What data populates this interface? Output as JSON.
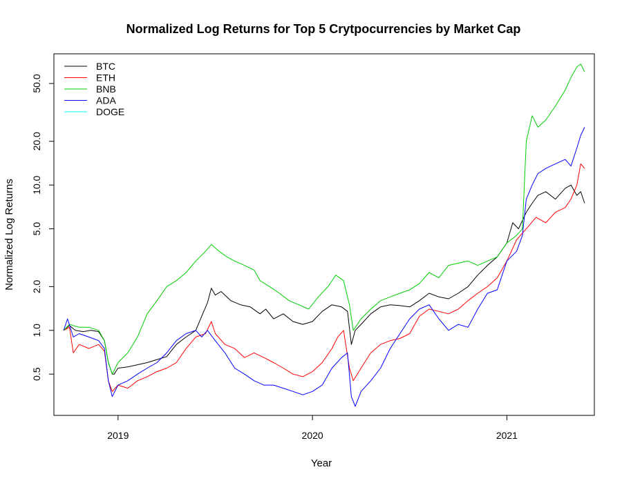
{
  "chart_data": {
    "type": "line",
    "title": "Normalized Log Returns for Top 5 Crytpocurrencies by Market Cap",
    "xlabel": "Year",
    "ylabel": "Normalized Log Returns",
    "y_scale": "log",
    "xlim": [
      2018.67,
      2021.45
    ],
    "ylim": [
      0.26,
      80
    ],
    "x_ticks": [
      {
        "value": 2019,
        "label": "2019"
      },
      {
        "value": 2020,
        "label": "2020"
      },
      {
        "value": 2021,
        "label": "2021"
      }
    ],
    "y_ticks": [
      {
        "value": 0.5,
        "label": "0.5"
      },
      {
        "value": 1.0,
        "label": "1.0"
      },
      {
        "value": 2.0,
        "label": "2.0"
      },
      {
        "value": 5.0,
        "label": "5.0"
      },
      {
        "value": 10.0,
        "label": "10.0"
      },
      {
        "value": 20.0,
        "label": "20.0"
      },
      {
        "value": 50.0,
        "label": "50.0"
      }
    ],
    "grid": false,
    "legend_position": "top-left",
    "series": [
      {
        "name": "BTC",
        "color": "#000000",
        "points": [
          [
            2018.72,
            1.0
          ],
          [
            2018.75,
            1.08
          ],
          [
            2018.78,
            1.0
          ],
          [
            2018.82,
            0.98
          ],
          [
            2018.86,
            1.0
          ],
          [
            2018.9,
            0.98
          ],
          [
            2018.93,
            0.85
          ],
          [
            2018.95,
            0.6
          ],
          [
            2018.97,
            0.5
          ],
          [
            2018.98,
            0.5
          ],
          [
            2019.0,
            0.55
          ],
          [
            2019.05,
            0.56
          ],
          [
            2019.1,
            0.58
          ],
          [
            2019.15,
            0.6
          ],
          [
            2019.2,
            0.63
          ],
          [
            2019.25,
            0.66
          ],
          [
            2019.3,
            0.8
          ],
          [
            2019.35,
            0.9
          ],
          [
            2019.4,
            1.0
          ],
          [
            2019.43,
            1.25
          ],
          [
            2019.46,
            1.55
          ],
          [
            2019.48,
            1.95
          ],
          [
            2019.5,
            1.75
          ],
          [
            2019.53,
            1.85
          ],
          [
            2019.58,
            1.6
          ],
          [
            2019.63,
            1.5
          ],
          [
            2019.68,
            1.45
          ],
          [
            2019.73,
            1.3
          ],
          [
            2019.76,
            1.4
          ],
          [
            2019.8,
            1.2
          ],
          [
            2019.85,
            1.3
          ],
          [
            2019.9,
            1.15
          ],
          [
            2019.95,
            1.1
          ],
          [
            2020.0,
            1.15
          ],
          [
            2020.05,
            1.35
          ],
          [
            2020.1,
            1.5
          ],
          [
            2020.15,
            1.45
          ],
          [
            2020.18,
            1.35
          ],
          [
            2020.2,
            0.8
          ],
          [
            2020.22,
            1.0
          ],
          [
            2020.25,
            1.1
          ],
          [
            2020.3,
            1.3
          ],
          [
            2020.35,
            1.45
          ],
          [
            2020.4,
            1.5
          ],
          [
            2020.45,
            1.48
          ],
          [
            2020.5,
            1.45
          ],
          [
            2020.55,
            1.6
          ],
          [
            2020.6,
            1.8
          ],
          [
            2020.65,
            1.7
          ],
          [
            2020.7,
            1.65
          ],
          [
            2020.75,
            1.8
          ],
          [
            2020.8,
            2.0
          ],
          [
            2020.85,
            2.4
          ],
          [
            2020.9,
            2.8
          ],
          [
            2020.95,
            3.2
          ],
          [
            2021.0,
            4.0
          ],
          [
            2021.03,
            5.5
          ],
          [
            2021.06,
            5.0
          ],
          [
            2021.1,
            6.5
          ],
          [
            2021.13,
            7.5
          ],
          [
            2021.16,
            8.5
          ],
          [
            2021.2,
            9.0
          ],
          [
            2021.25,
            8.0
          ],
          [
            2021.3,
            9.5
          ],
          [
            2021.33,
            10.0
          ],
          [
            2021.36,
            8.5
          ],
          [
            2021.38,
            9.0
          ],
          [
            2021.4,
            7.5
          ]
        ]
      },
      {
        "name": "ETH",
        "color": "#ff0000",
        "points": [
          [
            2018.72,
            1.0
          ],
          [
            2018.75,
            1.05
          ],
          [
            2018.77,
            0.7
          ],
          [
            2018.8,
            0.8
          ],
          [
            2018.85,
            0.75
          ],
          [
            2018.9,
            0.8
          ],
          [
            2018.93,
            0.72
          ],
          [
            2018.95,
            0.45
          ],
          [
            2018.97,
            0.38
          ],
          [
            2019.0,
            0.42
          ],
          [
            2019.05,
            0.4
          ],
          [
            2019.1,
            0.45
          ],
          [
            2019.15,
            0.48
          ],
          [
            2019.2,
            0.52
          ],
          [
            2019.25,
            0.55
          ],
          [
            2019.3,
            0.6
          ],
          [
            2019.35,
            0.75
          ],
          [
            2019.4,
            0.9
          ],
          [
            2019.45,
            0.95
          ],
          [
            2019.48,
            1.15
          ],
          [
            2019.5,
            0.95
          ],
          [
            2019.55,
            0.8
          ],
          [
            2019.6,
            0.75
          ],
          [
            2019.65,
            0.65
          ],
          [
            2019.7,
            0.7
          ],
          [
            2019.75,
            0.65
          ],
          [
            2019.8,
            0.6
          ],
          [
            2019.85,
            0.55
          ],
          [
            2019.9,
            0.5
          ],
          [
            2019.95,
            0.48
          ],
          [
            2020.0,
            0.52
          ],
          [
            2020.05,
            0.6
          ],
          [
            2020.1,
            0.75
          ],
          [
            2020.13,
            0.9
          ],
          [
            2020.16,
            1.0
          ],
          [
            2020.19,
            0.55
          ],
          [
            2020.21,
            0.45
          ],
          [
            2020.25,
            0.55
          ],
          [
            2020.3,
            0.7
          ],
          [
            2020.35,
            0.8
          ],
          [
            2020.4,
            0.85
          ],
          [
            2020.45,
            0.88
          ],
          [
            2020.5,
            0.95
          ],
          [
            2020.55,
            1.25
          ],
          [
            2020.6,
            1.4
          ],
          [
            2020.65,
            1.35
          ],
          [
            2020.7,
            1.3
          ],
          [
            2020.75,
            1.4
          ],
          [
            2020.8,
            1.6
          ],
          [
            2020.85,
            1.8
          ],
          [
            2020.9,
            2.0
          ],
          [
            2020.95,
            2.3
          ],
          [
            2021.0,
            3.0
          ],
          [
            2021.05,
            4.2
          ],
          [
            2021.1,
            5.0
          ],
          [
            2021.15,
            6.0
          ],
          [
            2021.2,
            5.5
          ],
          [
            2021.25,
            6.5
          ],
          [
            2021.3,
            7.0
          ],
          [
            2021.33,
            8.0
          ],
          [
            2021.36,
            10.0
          ],
          [
            2021.38,
            14.0
          ],
          [
            2021.4,
            13.0
          ]
        ]
      },
      {
        "name": "BNB",
        "color": "#00cc00",
        "points": [
          [
            2018.72,
            1.0
          ],
          [
            2018.75,
            1.1
          ],
          [
            2018.8,
            1.05
          ],
          [
            2018.85,
            1.05
          ],
          [
            2018.9,
            1.0
          ],
          [
            2018.93,
            0.85
          ],
          [
            2018.95,
            0.6
          ],
          [
            2018.97,
            0.5
          ],
          [
            2019.0,
            0.6
          ],
          [
            2019.05,
            0.7
          ],
          [
            2019.1,
            0.9
          ],
          [
            2019.15,
            1.3
          ],
          [
            2019.2,
            1.6
          ],
          [
            2019.25,
            2.0
          ],
          [
            2019.3,
            2.2
          ],
          [
            2019.35,
            2.5
          ],
          [
            2019.4,
            3.0
          ],
          [
            2019.45,
            3.5
          ],
          [
            2019.48,
            3.9
          ],
          [
            2019.52,
            3.5
          ],
          [
            2019.56,
            3.2
          ],
          [
            2019.6,
            3.0
          ],
          [
            2019.65,
            2.8
          ],
          [
            2019.7,
            2.6
          ],
          [
            2019.73,
            2.2
          ],
          [
            2019.78,
            2.0
          ],
          [
            2019.83,
            1.8
          ],
          [
            2019.88,
            1.6
          ],
          [
            2019.93,
            1.5
          ],
          [
            2019.98,
            1.4
          ],
          [
            2020.03,
            1.7
          ],
          [
            2020.08,
            2.0
          ],
          [
            2020.12,
            2.4
          ],
          [
            2020.16,
            2.2
          ],
          [
            2020.19,
            1.5
          ],
          [
            2020.21,
            1.0
          ],
          [
            2020.25,
            1.2
          ],
          [
            2020.3,
            1.4
          ],
          [
            2020.35,
            1.6
          ],
          [
            2020.4,
            1.7
          ],
          [
            2020.45,
            1.8
          ],
          [
            2020.5,
            1.9
          ],
          [
            2020.55,
            2.1
          ],
          [
            2020.6,
            2.5
          ],
          [
            2020.65,
            2.3
          ],
          [
            2020.7,
            2.8
          ],
          [
            2020.75,
            2.9
          ],
          [
            2020.8,
            3.0
          ],
          [
            2020.85,
            2.8
          ],
          [
            2020.9,
            3.0
          ],
          [
            2020.95,
            3.2
          ],
          [
            2021.0,
            4.0
          ],
          [
            2021.05,
            4.5
          ],
          [
            2021.08,
            5.0
          ],
          [
            2021.1,
            20.0
          ],
          [
            2021.13,
            30.0
          ],
          [
            2021.16,
            25.0
          ],
          [
            2021.2,
            28.0
          ],
          [
            2021.25,
            35.0
          ],
          [
            2021.3,
            45.0
          ],
          [
            2021.33,
            55.0
          ],
          [
            2021.36,
            65.0
          ],
          [
            2021.38,
            68.0
          ],
          [
            2021.4,
            60.0
          ]
        ]
      },
      {
        "name": "ADA",
        "color": "#0000ff",
        "points": [
          [
            2018.72,
            1.0
          ],
          [
            2018.74,
            1.2
          ],
          [
            2018.77,
            0.9
          ],
          [
            2018.8,
            0.95
          ],
          [
            2018.85,
            0.9
          ],
          [
            2018.9,
            0.85
          ],
          [
            2018.93,
            0.75
          ],
          [
            2018.95,
            0.45
          ],
          [
            2018.97,
            0.35
          ],
          [
            2019.0,
            0.42
          ],
          [
            2019.05,
            0.45
          ],
          [
            2019.1,
            0.5
          ],
          [
            2019.15,
            0.55
          ],
          [
            2019.2,
            0.6
          ],
          [
            2019.25,
            0.7
          ],
          [
            2019.3,
            0.85
          ],
          [
            2019.35,
            0.95
          ],
          [
            2019.4,
            1.0
          ],
          [
            2019.43,
            0.9
          ],
          [
            2019.46,
            1.0
          ],
          [
            2019.5,
            0.85
          ],
          [
            2019.55,
            0.7
          ],
          [
            2019.6,
            0.55
          ],
          [
            2019.65,
            0.5
          ],
          [
            2019.7,
            0.45
          ],
          [
            2019.75,
            0.42
          ],
          [
            2019.8,
            0.42
          ],
          [
            2019.85,
            0.4
          ],
          [
            2019.9,
            0.38
          ],
          [
            2019.95,
            0.36
          ],
          [
            2020.0,
            0.38
          ],
          [
            2020.05,
            0.42
          ],
          [
            2020.1,
            0.55
          ],
          [
            2020.15,
            0.65
          ],
          [
            2020.18,
            0.7
          ],
          [
            2020.2,
            0.35
          ],
          [
            2020.22,
            0.3
          ],
          [
            2020.25,
            0.38
          ],
          [
            2020.3,
            0.45
          ],
          [
            2020.35,
            0.55
          ],
          [
            2020.4,
            0.75
          ],
          [
            2020.45,
            0.95
          ],
          [
            2020.5,
            1.2
          ],
          [
            2020.55,
            1.4
          ],
          [
            2020.6,
            1.5
          ],
          [
            2020.65,
            1.2
          ],
          [
            2020.7,
            1.0
          ],
          [
            2020.75,
            1.1
          ],
          [
            2020.8,
            1.05
          ],
          [
            2020.85,
            1.4
          ],
          [
            2020.9,
            1.8
          ],
          [
            2020.95,
            1.9
          ],
          [
            2021.0,
            3.0
          ],
          [
            2021.05,
            3.5
          ],
          [
            2021.08,
            4.5
          ],
          [
            2021.1,
            8.0
          ],
          [
            2021.13,
            10.0
          ],
          [
            2021.16,
            12.0
          ],
          [
            2021.2,
            13.0
          ],
          [
            2021.25,
            14.0
          ],
          [
            2021.3,
            15.0
          ],
          [
            2021.33,
            13.5
          ],
          [
            2021.36,
            18.0
          ],
          [
            2021.38,
            22.0
          ],
          [
            2021.4,
            25.0
          ]
        ]
      },
      {
        "name": "DOGE",
        "color": "#00ffff",
        "points": []
      }
    ]
  }
}
